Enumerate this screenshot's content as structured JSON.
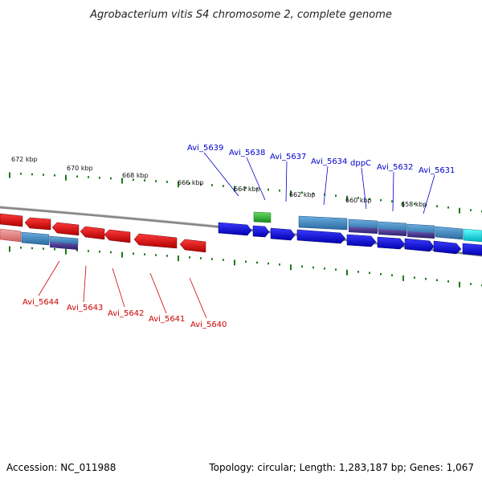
{
  "title": "Agrobacterium vitis S4 chromosome 2, complete genome",
  "footer": {
    "accession": "Accession: NC_011988",
    "summary": "Topology: circular; Length: 1,283,187 bp; Genes: 1,067"
  },
  "colors": {
    "forward_label": "#0000cc",
    "reverse_label": "#cc0000",
    "tick": "#1a7a1a",
    "backbone": "#888888",
    "forward_gene": "#1010e8",
    "reverse_gene": "#e81010",
    "operon_top": "#4a90c8",
    "operon_bottom": "#4a3a8a",
    "green_gene": "#33bb33",
    "cyan_gene": "#00dddd",
    "pink_gene": "#e88888"
  },
  "tick_labels": [
    "672 kbp",
    "670 kbp",
    "668 kbp",
    "666 kbp",
    "664 kbp",
    "662 kbp",
    "660 kbp",
    "658 kbp"
  ],
  "forward_labels": [
    "Avi_5639",
    "Avi_5638",
    "Avi_5637",
    "Avi_5634",
    "dppC",
    "Avi_5632",
    "Avi_5631"
  ],
  "reverse_labels": [
    "Avi_5644",
    "Avi_5643",
    "Avi_5642",
    "Avi_5641",
    "Avi_5640"
  ]
}
